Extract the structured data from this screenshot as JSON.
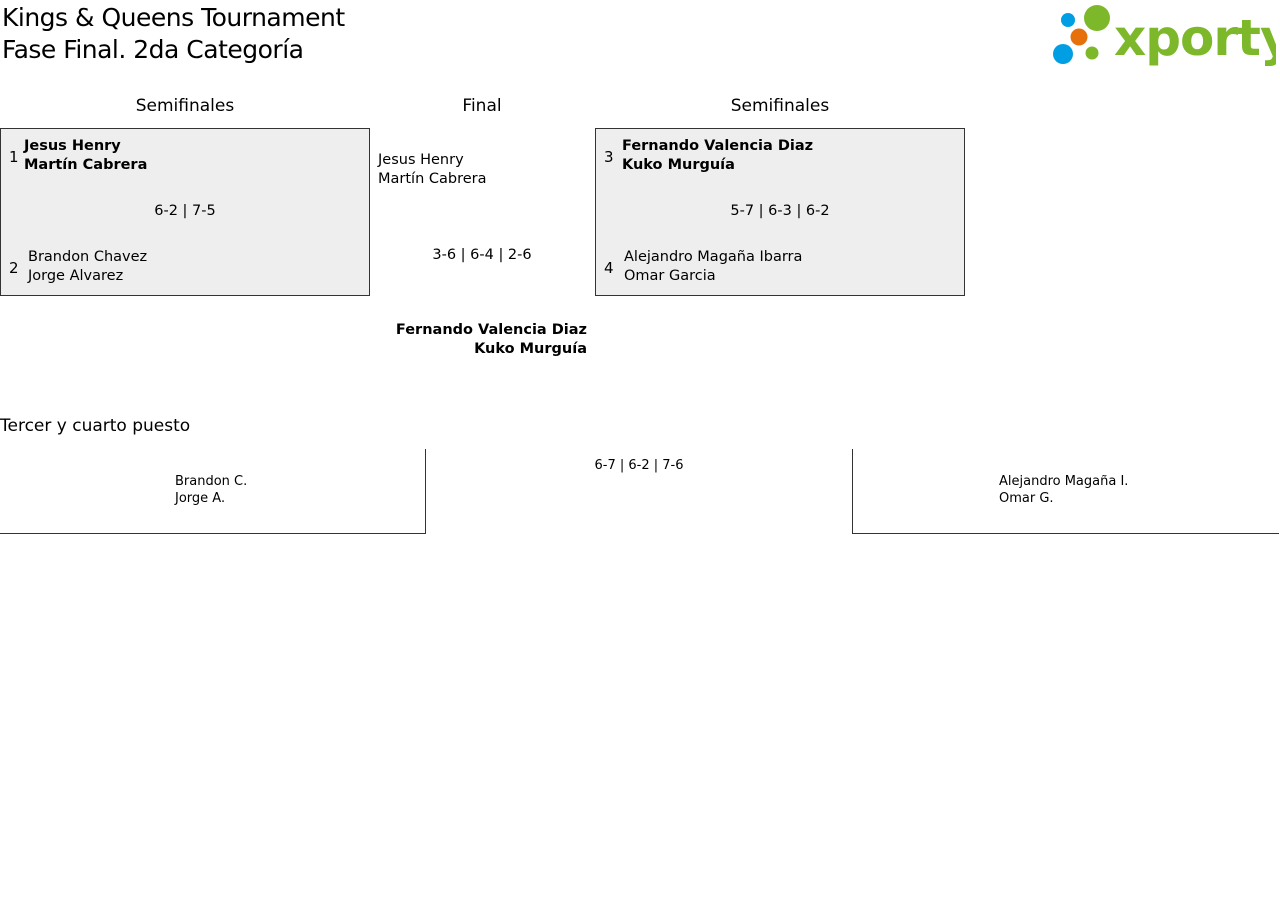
{
  "header": {
    "title_line1": "Kings & Queens Tournament",
    "title_line2": "Fase Final. 2da Categoría",
    "logo_text": "xporty",
    "logo_colors": [
      "#009fe3",
      "#e6700c",
      "#7cb82a"
    ]
  },
  "columns": {
    "left": "Semifinales",
    "center": "Final",
    "right": "Semifinales"
  },
  "semi_left": {
    "team1": {
      "seed": "1",
      "p1": "Jesus Henry",
      "p2": "Martín Cabrera",
      "winner": true
    },
    "score": "6-2 | 7-5",
    "team2": {
      "seed": "2",
      "p1": "Brandon Chavez",
      "p2": "Jorge Alvarez"
    }
  },
  "semi_right": {
    "team1": {
      "seed": "3",
      "p1": "Fernando Valencia Diaz",
      "p2": "Kuko Murguía",
      "winner": true
    },
    "score": "5-7 | 6-3 | 6-2",
    "team2": {
      "seed": "4",
      "p1": "Alejandro Magaña Ibarra",
      "p2": "Omar Garcia"
    }
  },
  "final": {
    "team1": {
      "p1": "Jesus Henry",
      "p2": "Martín Cabrera"
    },
    "score": "3-6 | 6-4 | 2-6",
    "team2": {
      "p1": "Fernando Valencia Diaz",
      "p2": "Kuko Murguía",
      "winner": true
    }
  },
  "third_place": {
    "title": "Tercer y cuarto puesto",
    "team1": {
      "p1": "Brandon C.",
      "p2": "Jorge A."
    },
    "score": "6-7 | 6-2 | 7-6",
    "team2": {
      "p1": "Alejandro Magaña I.",
      "p2": "Omar G."
    }
  }
}
